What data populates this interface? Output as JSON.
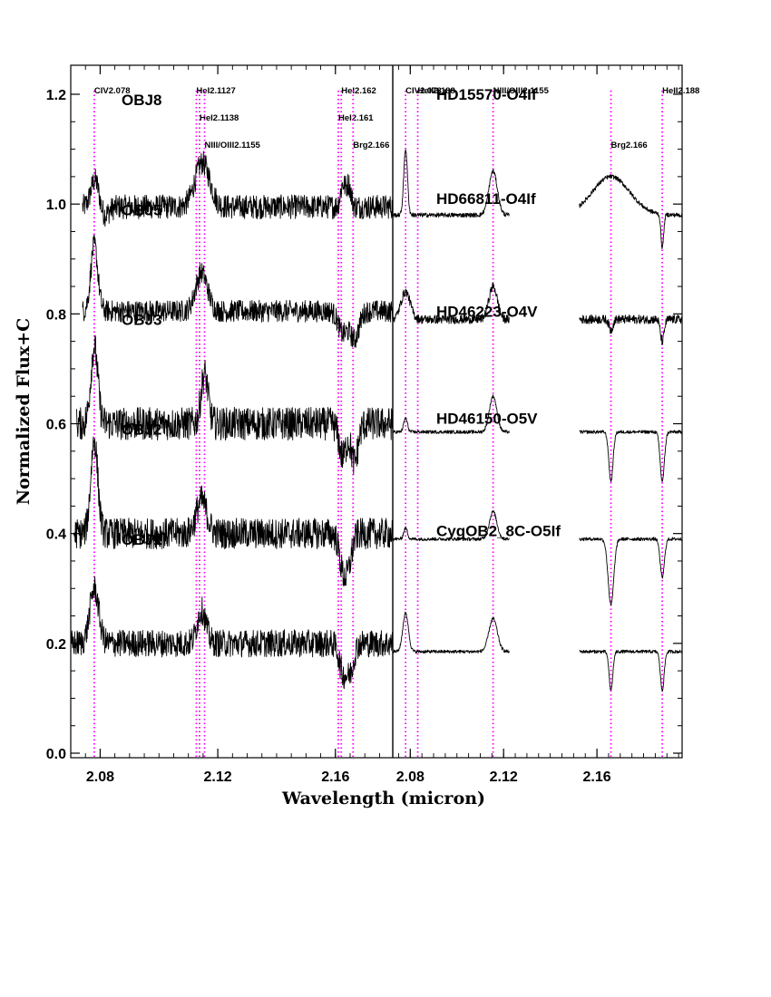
{
  "chart_data": {
    "type": "line",
    "title": "",
    "xlabel": "Wavelength (micron)",
    "ylabel": "Normalized Flux+C",
    "ylim": [
      0.0,
      1.25
    ],
    "yticks": [
      "0.0",
      "0.2",
      "0.4",
      "0.6",
      "0.8",
      "1.0",
      "1.2"
    ],
    "grid": false,
    "legend": "none",
    "panels": [
      {
        "name": "left",
        "xlim": [
          2.07,
          2.1795
        ],
        "xticks": [
          "2.08",
          "2.12",
          "2.16"
        ],
        "line_markers": [
          {
            "x": 2.078,
            "label": "CIV2.078",
            "row": 0
          },
          {
            "x": 2.1127,
            "label": "HeI2.1127",
            "row": 0
          },
          {
            "x": 2.1138,
            "label": "HeI2.1138",
            "row": 1
          },
          {
            "x": 2.1155,
            "label": "NIII/OIII2.1155",
            "row": 2
          },
          {
            "x": 2.161,
            "label": "HeI2.161",
            "row": 1
          },
          {
            "x": 2.162,
            "label": "HeI2.162",
            "row": 0
          },
          {
            "x": 2.166,
            "label": "Brg2.166",
            "row": 2
          },
          {
            "x": 2.188,
            "label": "HeII2.188",
            "row": 0
          }
        ],
        "series": [
          {
            "name": "OBJ8",
            "offset": 1.0,
            "noise": 0.022,
            "continuum": -0.005,
            "x": [
              2.074,
              2.1795
            ],
            "features": [
              [
                2.0785,
                0.07,
                0.0015
              ],
              [
                2.08,
                -0.03,
                0.002
              ],
              [
                2.1148,
                0.08,
                0.0025
              ],
              [
                2.1625,
                0.04,
                0.0008
              ],
              [
                2.1645,
                0.04,
                0.0008
              ],
              [
                2.1895,
                -0.04,
                0.0015
              ]
            ]
          },
          {
            "name": "OBJ5",
            "offset": 0.8,
            "noise": 0.02,
            "continuum": 0.005,
            "x": [
              2.074,
              2.1795
            ],
            "features": [
              [
                2.078,
                0.12,
                0.0012
              ],
              [
                2.1145,
                0.07,
                0.002
              ],
              [
                2.1625,
                -0.04,
                0.0015
              ],
              [
                2.1665,
                -0.05,
                0.0015
              ],
              [
                2.187,
                -0.09,
                0.0025
              ]
            ]
          },
          {
            "name": "OBJ3",
            "offset": 0.6,
            "noise": 0.03,
            "continuum": 0.0,
            "x": [
              2.072,
              2.1795
            ],
            "features": [
              [
                2.078,
                0.14,
                0.0012
              ],
              [
                2.1155,
                0.09,
                0.0012
              ],
              [
                2.1625,
                -0.06,
                0.0012
              ],
              [
                2.1665,
                -0.07,
                0.0012
              ],
              [
                2.188,
                -0.08,
                0.0012
              ]
            ]
          },
          {
            "name": "OBJ2",
            "offset": 0.4,
            "noise": 0.028,
            "continuum": 0.0,
            "x": [
              2.071,
              2.1795
            ],
            "features": [
              [
                2.078,
                0.17,
                0.0012
              ],
              [
                2.1145,
                0.06,
                0.0018
              ],
              [
                2.1625,
                -0.06,
                0.0012
              ],
              [
                2.1645,
                -0.05,
                0.0012
              ],
              [
                2.188,
                -0.04,
                0.0012
              ]
            ]
          },
          {
            "name": "OBJ1",
            "offset": 0.2,
            "noise": 0.025,
            "continuum": 0.0,
            "x": [
              2.07,
              2.1795
            ],
            "features": [
              [
                2.078,
                0.1,
                0.0015
              ],
              [
                2.1145,
                0.06,
                0.0015
              ],
              [
                2.1625,
                -0.05,
                0.0012
              ],
              [
                2.165,
                -0.05,
                0.0012
              ],
              [
                2.188,
                -0.04,
                0.0012
              ]
            ]
          }
        ]
      },
      {
        "name": "right",
        "xlim": [
          2.0725,
          2.1965
        ],
        "xticks": [
          "2.08",
          "2.12",
          "2.16"
        ],
        "line_markers": [
          {
            "x": 2.078,
            "label": "CIV2.078",
            "row": 0
          },
          {
            "x": 2.1155,
            "label": "NIII/OIII2.1155",
            "row": 0
          },
          {
            "x": 2.166,
            "label": "Brg2.166",
            "row": 2
          },
          {
            "x": 2.188,
            "label": "HeII2.188",
            "row": 0
          }
        ],
        "series": [
          {
            "name": "HD15570-O4If",
            "offset": 0.98,
            "noise": 0.004,
            "segments": [
              [
                2.0725,
                2.1225
              ],
              [
                2.1525,
                2.1965
              ]
            ],
            "features": [
              [
                2.078,
                0.12,
                0.0008
              ],
              [
                2.1155,
                0.08,
                0.0018
              ],
              [
                2.166,
                0.07,
                0.008
              ],
              [
                2.188,
                -0.06,
                0.0006
              ]
            ]
          },
          {
            "name": "HD66811-O4If",
            "offset": 0.79,
            "noise": 0.008,
            "segments": [
              [
                2.0725,
                2.1225
              ],
              [
                2.1525,
                2.1965
              ]
            ],
            "features": [
              [
                2.078,
                0.05,
                0.002
              ],
              [
                2.1155,
                0.06,
                0.0018
              ],
              [
                2.166,
                -0.02,
                0.0008
              ],
              [
                2.188,
                -0.04,
                0.0008
              ]
            ]
          },
          {
            "name": "HD46223-O4V",
            "offset": 0.585,
            "noise": 0.003,
            "segments": [
              [
                2.0725,
                2.1225
              ],
              [
                2.1525,
                2.1965
              ]
            ],
            "features": [
              [
                2.078,
                0.025,
                0.0008
              ],
              [
                2.1155,
                0.065,
                0.0016
              ],
              [
                2.166,
                -0.09,
                0.0009
              ],
              [
                2.188,
                -0.09,
                0.0009
              ]
            ]
          },
          {
            "name": "HD46150-O5V",
            "offset": 0.39,
            "noise": 0.003,
            "segments": [
              [
                2.0725,
                2.1225
              ],
              [
                2.1525,
                2.1965
              ]
            ],
            "features": [
              [
                2.078,
                0.02,
                0.0008
              ],
              [
                2.1155,
                0.05,
                0.0016
              ],
              [
                2.166,
                -0.12,
                0.0012
              ],
              [
                2.188,
                -0.07,
                0.0009
              ]
            ]
          },
          {
            "name": "CygOB2_8C-O5If",
            "offset": 0.185,
            "noise": 0.003,
            "segments": [
              [
                2.0725,
                2.1225
              ],
              [
                2.1525,
                2.1965
              ]
            ],
            "features": [
              [
                2.078,
                0.07,
                0.0012
              ],
              [
                2.1155,
                0.06,
                0.0018
              ],
              [
                2.166,
                -0.07,
                0.0008
              ],
              [
                2.188,
                -0.07,
                0.0008
              ]
            ]
          }
        ]
      }
    ]
  }
}
